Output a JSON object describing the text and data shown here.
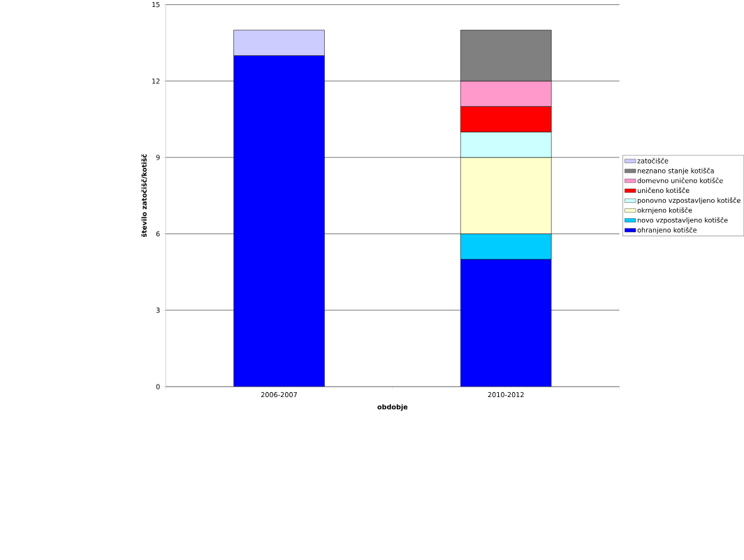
{
  "chart_data": {
    "type": "bar",
    "stacked": true,
    "xlabel": "obdobje",
    "ylabel": "število zatočišč/kotišč",
    "categories": [
      "2006-2007",
      "2010-2012"
    ],
    "ylim": [
      0,
      15
    ],
    "yticks": [
      0,
      3,
      6,
      9,
      12,
      15
    ],
    "grid": "y",
    "legend": "right",
    "series": [
      {
        "name": "ohranjeno kotišče",
        "color": "#0000ff",
        "values": [
          13,
          5
        ]
      },
      {
        "name": "novo vzpostavljeno kotišče",
        "color": "#00ccff",
        "values": [
          null,
          1
        ]
      },
      {
        "name": "okrnjeno kotišče",
        "color": "#ffffcc",
        "values": [
          null,
          3
        ]
      },
      {
        "name": "ponovno vzpostavljeno kotišče",
        "color": "#ccffff",
        "values": [
          null,
          1
        ]
      },
      {
        "name": "uničeno kotišče",
        "color": "#ff0000",
        "values": [
          null,
          1
        ]
      },
      {
        "name": "domevno uničeno kotišče",
        "color": "#ff99cc",
        "values": [
          null,
          1
        ]
      },
      {
        "name": "neznano stanje kotišča",
        "color": "#808080",
        "values": [
          null,
          2
        ]
      },
      {
        "name": "zatočišče",
        "color": "#ccccff",
        "values": [
          1,
          null
        ]
      }
    ]
  }
}
